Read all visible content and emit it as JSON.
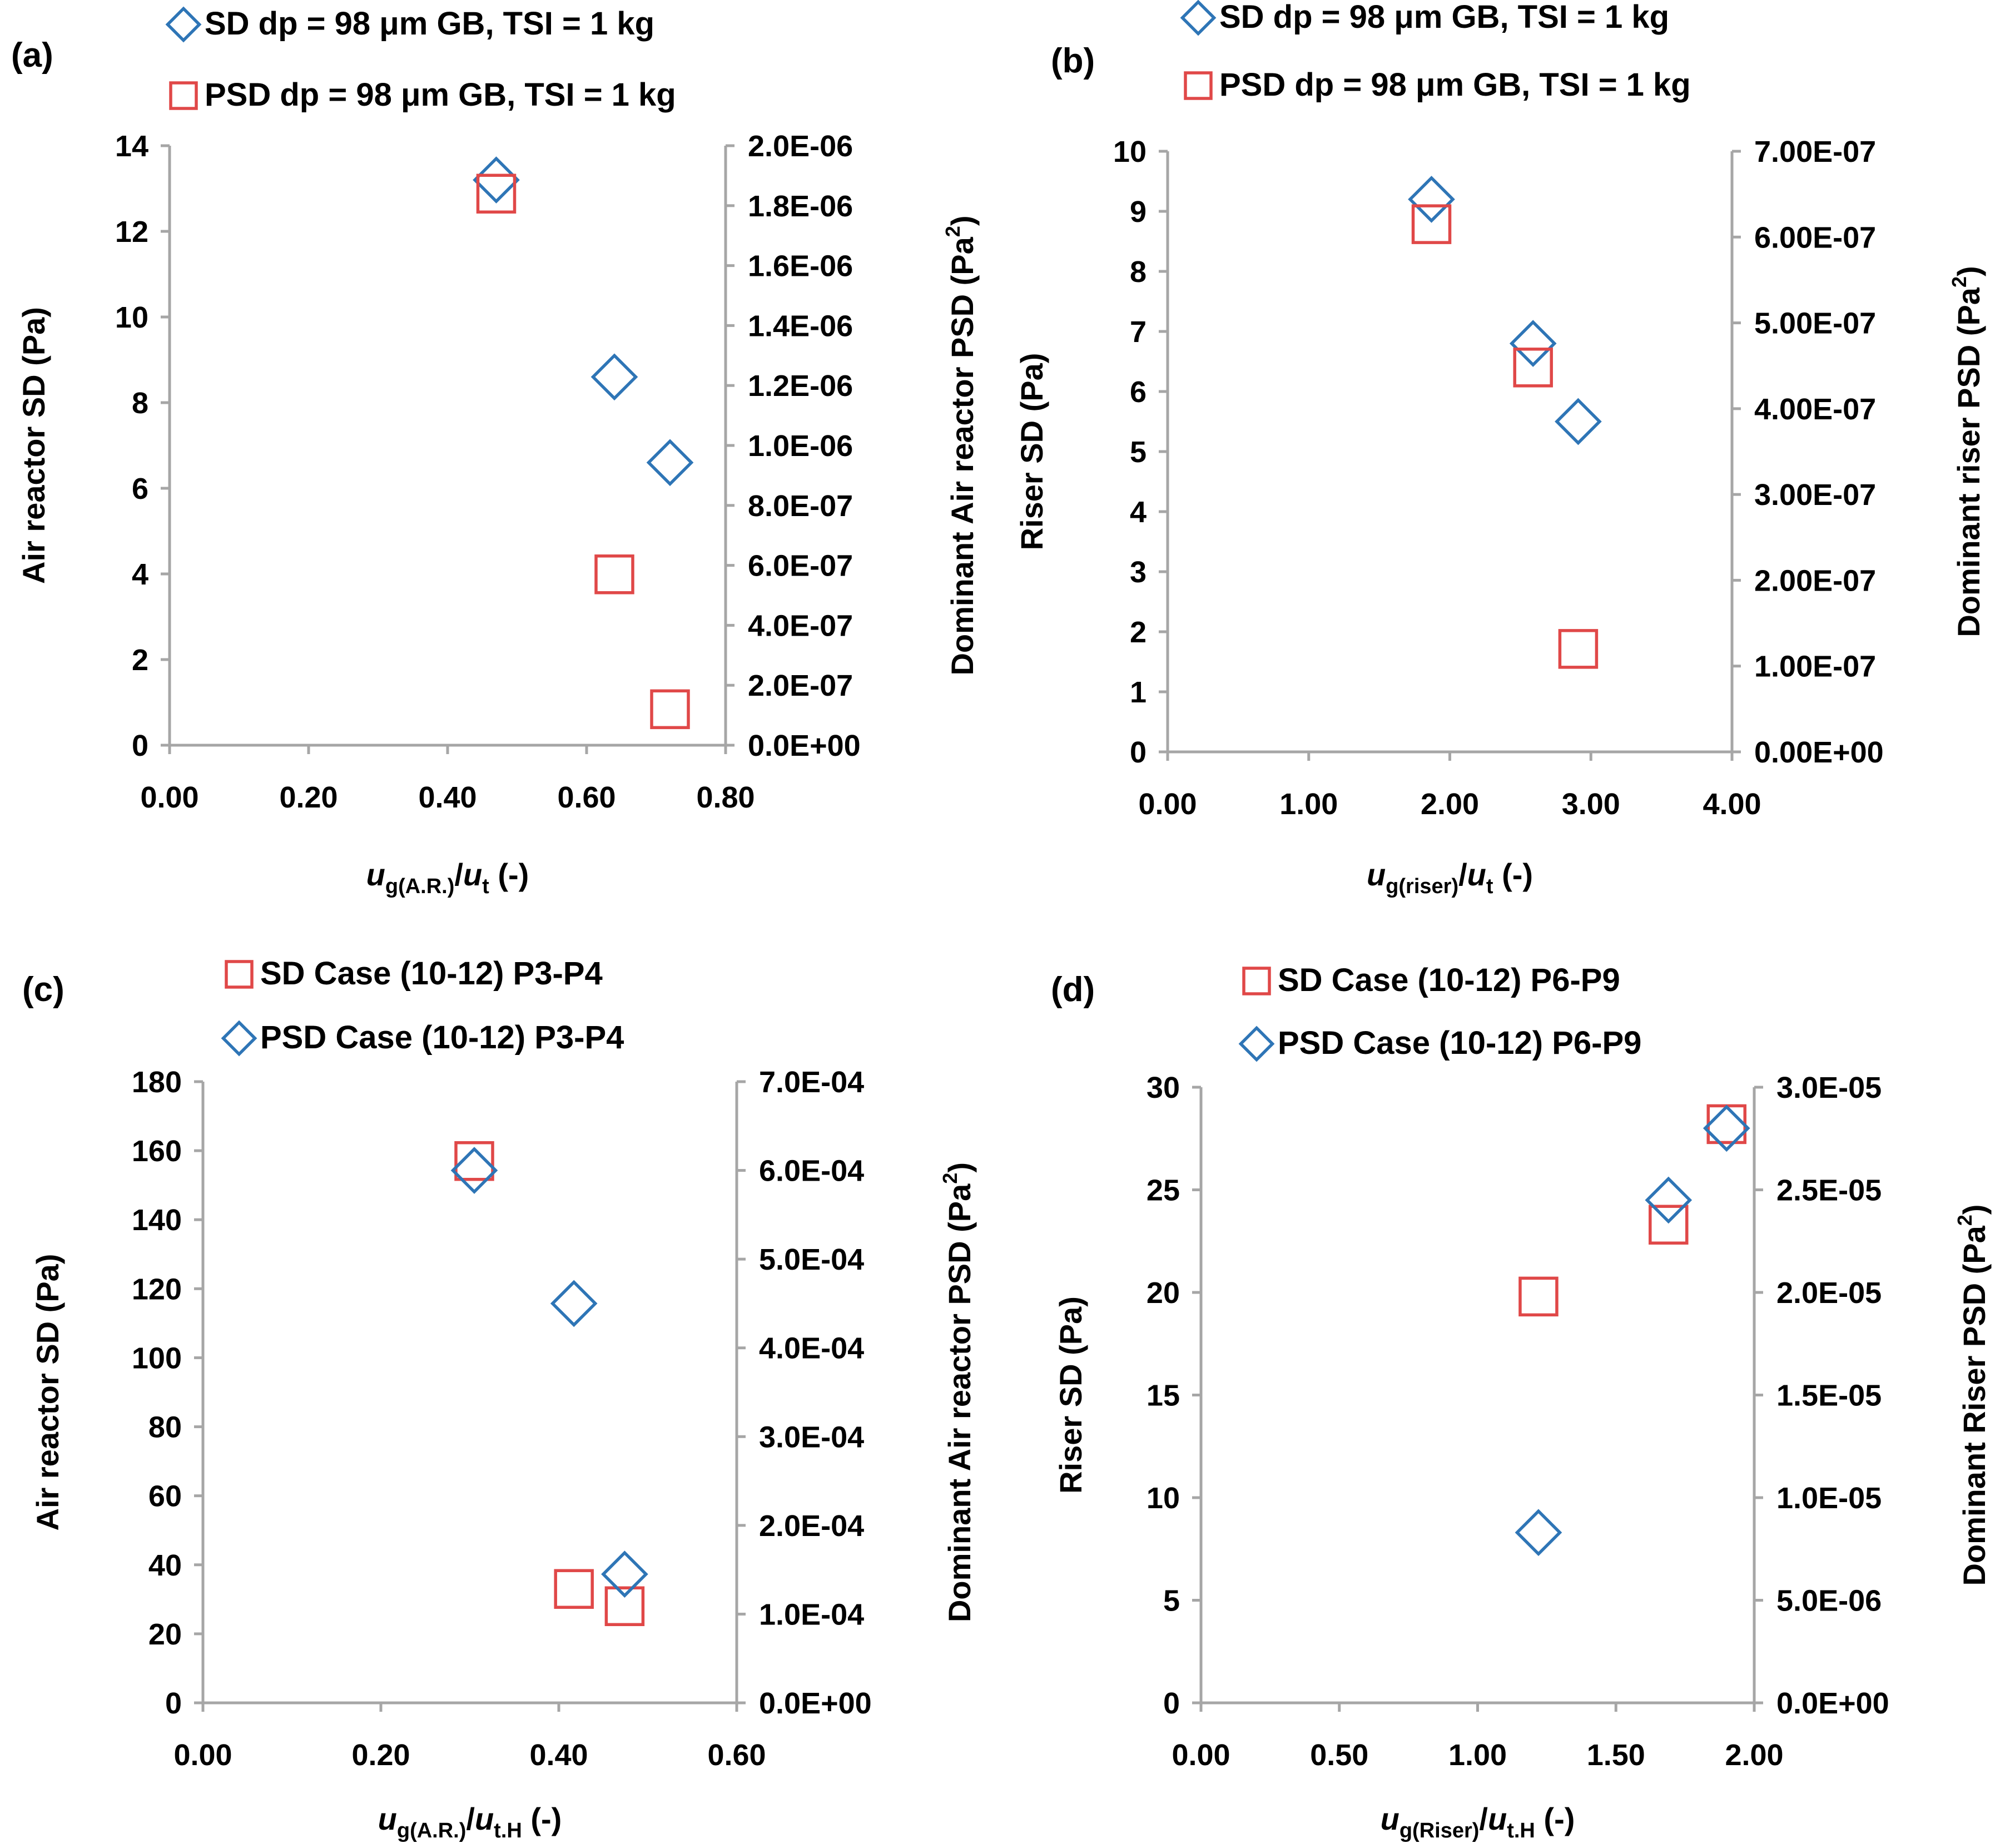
{
  "chart_data": [
    {
      "type": "scatter",
      "panel_label": "(a)",
      "xlabel": {
        "main": "u",
        "main_sub": "g(A.R.)",
        "slash": "/",
        "second": "u",
        "second_sub": "t",
        "suffix": " (-)"
      },
      "ylabel": "Air reactor SD (Pa)",
      "y2label": {
        "text": "Dominant Air reactor PSD (Pa",
        "sup": "2",
        "close": ")"
      },
      "xlim": [
        0,
        0.8
      ],
      "ylim": [
        0,
        14
      ],
      "y2lim": [
        0,
        2e-06
      ],
      "xticks": [
        "0.00",
        "0.20",
        "0.40",
        "0.60",
        "0.80"
      ],
      "yticks": [
        "0",
        "2",
        "4",
        "6",
        "8",
        "10",
        "12",
        "14"
      ],
      "y2ticks": [
        "0.0E+00",
        "2.0E-07",
        "4.0E-07",
        "6.0E-07",
        "8.0E-07",
        "1.0E-06",
        "1.2E-06",
        "1.4E-06",
        "1.6E-06",
        "1.8E-06",
        "2.0E-06"
      ],
      "series": [
        {
          "name": "SD dp = 98 μm GB, TSI = 1 kg",
          "marker": "diamond",
          "color": "#2e75b6",
          "axis": "left",
          "x": [
            0.47,
            0.64,
            0.72
          ],
          "y": [
            13.2,
            8.6,
            6.6
          ]
        },
        {
          "name": "PSD dp = 98 μm GB, TSI = 1 kg",
          "marker": "square",
          "color": "#e04848",
          "axis": "right",
          "x": [
            0.47,
            0.64,
            0.72
          ],
          "y": [
            1.84e-06,
            5.7e-07,
            1.2e-07
          ]
        }
      ]
    },
    {
      "type": "scatter",
      "panel_label": "(b)",
      "xlabel": {
        "main": "u",
        "main_sub": "g(riser)",
        "slash": "/",
        "second": "u",
        "second_sub": "t",
        "suffix": " (-)"
      },
      "ylabel": "Riser SD (Pa)",
      "y2label": {
        "text": "Dominant riser PSD (Pa",
        "sup": "2",
        "close": ")"
      },
      "xlim": [
        0,
        4
      ],
      "ylim": [
        0,
        10
      ],
      "y2lim": [
        0,
        7e-07
      ],
      "xticks": [
        "0.00",
        "1.00",
        "2.00",
        "3.00",
        "4.00"
      ],
      "yticks": [
        "0",
        "1",
        "2",
        "3",
        "4",
        "5",
        "6",
        "7",
        "8",
        "9",
        "10"
      ],
      "y2ticks": [
        "0.00E+00",
        "1.00E-07",
        "2.00E-07",
        "3.00E-07",
        "4.00E-07",
        "5.00E-07",
        "6.00E-07",
        "7.00E-07"
      ],
      "series": [
        {
          "name": "SD dp = 98 μm GB, TSI = 1 kg",
          "marker": "diamond",
          "color": "#2e75b6",
          "axis": "left",
          "x": [
            1.87,
            2.59,
            2.91
          ],
          "y": [
            9.2,
            6.8,
            5.5
          ]
        },
        {
          "name": "PSD dp = 98 μm GB, TSI = 1 kg",
          "marker": "square",
          "color": "#e04848",
          "axis": "right",
          "x": [
            1.87,
            2.59,
            2.91
          ],
          "y": [
            6.15e-07,
            4.48e-07,
            1.2e-07
          ]
        }
      ]
    },
    {
      "type": "scatter",
      "panel_label": "(c)",
      "xlabel": {
        "main": "u",
        "main_sub": "g(A.R.)",
        "slash": "/",
        "second": "u",
        "second_sub": "t.H",
        "suffix": " (-)"
      },
      "ylabel": "Air reactor SD (Pa)",
      "y2label": {
        "text": "Dominant Air reactor PSD (Pa",
        "sup": "2",
        "close": ")"
      },
      "xlim": [
        0,
        0.6
      ],
      "ylim": [
        0,
        180
      ],
      "y2lim": [
        0,
        0.0007
      ],
      "xticks": [
        "0.00",
        "0.20",
        "0.40",
        "0.60"
      ],
      "yticks": [
        "0",
        "20",
        "40",
        "60",
        "80",
        "100",
        "120",
        "140",
        "160",
        "180"
      ],
      "y2ticks": [
        "0.0E+00",
        "1.0E-04",
        "2.0E-04",
        "3.0E-04",
        "4.0E-04",
        "5.0E-04",
        "6.0E-04",
        "7.0E-04"
      ],
      "series": [
        {
          "name": "SD Case (10-12) P3-P4",
          "marker": "square",
          "color": "#e04848",
          "axis": "left",
          "x": [
            0.305,
            0.417,
            0.474
          ],
          "y": [
            157,
            33,
            28
          ]
        },
        {
          "name": "PSD Case (10-12) P3-P4",
          "marker": "diamond",
          "color": "#2e75b6",
          "axis": "right",
          "x": [
            0.305,
            0.417,
            0.474
          ],
          "y": [
            0.0006,
            0.00045,
            0.000145
          ]
        }
      ]
    },
    {
      "type": "scatter",
      "panel_label": "(d)",
      "xlabel": {
        "main": "u",
        "main_sub": "g(Riser)",
        "slash": "/",
        "second": "u",
        "second_sub": "t.H",
        "suffix": " (-)"
      },
      "ylabel": "Riser SD (Pa)",
      "y2label": {
        "text": "Dominant Riser PSD (Pa",
        "sup": "2",
        "close": ")"
      },
      "xlim": [
        0,
        2
      ],
      "ylim": [
        0,
        30
      ],
      "y2lim": [
        0,
        3e-05
      ],
      "xticks": [
        "0.00",
        "0.50",
        "1.00",
        "1.50",
        "2.00"
      ],
      "yticks": [
        "0",
        "5",
        "10",
        "15",
        "20",
        "25",
        "30"
      ],
      "y2ticks": [
        "0.0E+00",
        "5.0E-06",
        "1.0E-05",
        "1.5E-05",
        "2.0E-05",
        "2.5E-05",
        "3.0E-05"
      ],
      "series": [
        {
          "name": "SD Case (10-12) P6-P9",
          "marker": "square",
          "color": "#e04848",
          "axis": "left",
          "x": [
            1.22,
            1.69,
            1.9
          ],
          "y": [
            19.8,
            23.3,
            28.2
          ]
        },
        {
          "name": "PSD Case (10-12) P6-P9",
          "marker": "diamond",
          "color": "#2e75b6",
          "axis": "right",
          "x": [
            1.22,
            1.69,
            1.9
          ],
          "y": [
            8.3e-06,
            2.45e-05,
            2.8e-05
          ]
        }
      ]
    }
  ]
}
